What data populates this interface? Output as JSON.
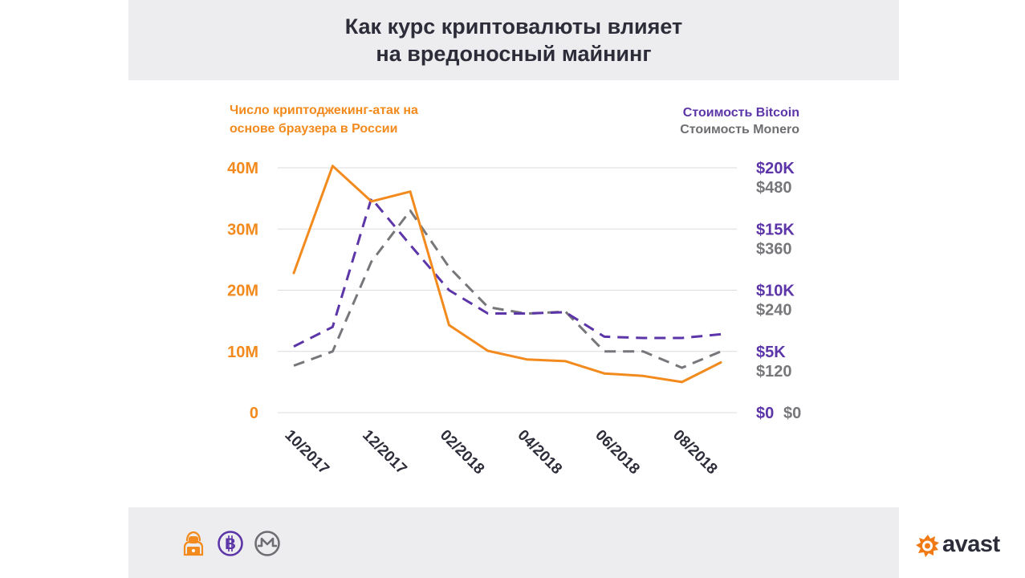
{
  "title_line1": "Как курс криптовалюты влияет",
  "title_line2": "на вредоносный майнинг",
  "legend": {
    "left_line1": "Число криптоджекинг-атак на",
    "left_line2": "основе браузера в России",
    "right_bitcoin": "Стоимость Bitcoin",
    "right_monero": "Стоимость Monero"
  },
  "colors": {
    "attacks": "#f28a1d",
    "bitcoin": "#5c35a8",
    "monero": "#77777b",
    "grid": "#dcdce0"
  },
  "icons": [
    "hacker-icon",
    "bitcoin-icon",
    "monero-icon",
    "avast-logo-icon"
  ],
  "brand": "avast",
  "chart_data": {
    "type": "line",
    "title": "Как курс криптовалюты влияет на вредоносный майнинг",
    "x_tick_labels": [
      "10/2017",
      "12/2017",
      "02/2018",
      "04/2018",
      "06/2018",
      "08/2018"
    ],
    "x": [
      "10/2017",
      "11/2017",
      "12/2017",
      "01/2018",
      "02/2018",
      "03/2018",
      "04/2018",
      "05/2018",
      "06/2018",
      "07/2018",
      "08/2018",
      "09/2018"
    ],
    "axes": {
      "left": {
        "label": "Число криптоджекинг-атак на основе браузера в России",
        "ylim": [
          0,
          40000000
        ],
        "ticks": [
          "0",
          "10M",
          "20M",
          "30M",
          "40M"
        ]
      },
      "right_bitcoin": {
        "label": "Стоимость Bitcoin",
        "ylim": [
          0,
          20000
        ],
        "ticks": [
          "$0",
          "$5K",
          "$10K",
          "$15K",
          "$20K"
        ]
      },
      "right_monero": {
        "label": "Стоимость Monero",
        "ylim": [
          0,
          480
        ],
        "ticks": [
          "$0",
          "$120",
          "$240",
          "$360",
          "$480"
        ]
      }
    },
    "series": [
      {
        "name": "Число криптоджекинг-атак на основе браузера в России",
        "axis": "left",
        "style": "solid",
        "values": [
          22800000,
          40300000,
          34500000,
          36100000,
          14300000,
          10100000,
          8700000,
          8400000,
          6400000,
          6000000,
          5000000,
          8200000
        ]
      },
      {
        "name": "Стоимость Bitcoin",
        "axis": "right_bitcoin",
        "style": "dashed",
        "values": [
          5400,
          7000,
          17500,
          13700,
          10000,
          8100,
          8100,
          8200,
          6200,
          6100,
          6100,
          6400
        ]
      },
      {
        "name": "Стоимость Monero",
        "axis": "right_monero",
        "style": "dashed",
        "values": [
          92,
          120,
          296,
          396,
          285,
          207,
          194,
          198,
          120,
          120,
          88,
          120
        ]
      }
    ]
  }
}
